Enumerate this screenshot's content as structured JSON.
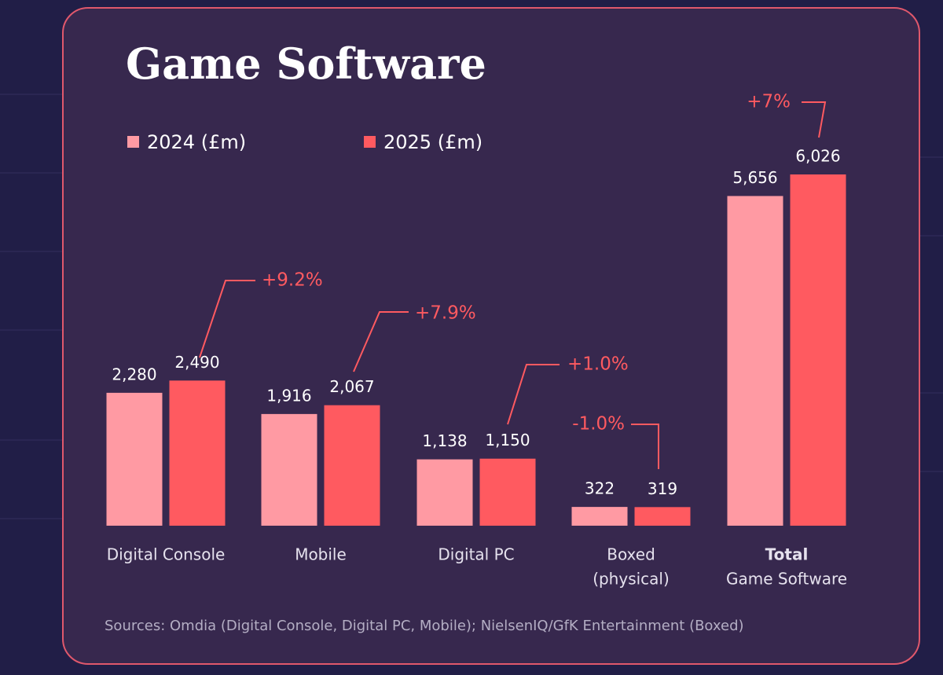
{
  "chart_data": {
    "type": "bar",
    "title": "Game Software",
    "categories": [
      [
        "Digital Console"
      ],
      [
        "Mobile"
      ],
      [
        "Digital PC"
      ],
      [
        "Boxed",
        "(physical)"
      ],
      [
        "Total",
        "Game Software"
      ]
    ],
    "series": [
      {
        "name": "2024 (£m)",
        "color": "#ff9aa3",
        "values": [
          2280,
          1916,
          1138,
          322,
          5656
        ],
        "value_labels": [
          "2,280",
          "1,916",
          "1,138",
          "322",
          "5,656"
        ]
      },
      {
        "name": "2025 (£m)",
        "color": "#ff5a60",
        "values": [
          2490,
          2067,
          1150,
          319,
          6026
        ],
        "value_labels": [
          "2,490",
          "2,067",
          "1,150",
          "319",
          "6,026"
        ]
      }
    ],
    "annotations": [
      "+9.2%",
      "+7.9%",
      "+1.0%",
      "-1.0%",
      "+7%"
    ],
    "source": "Sources: Omdia (Digital Console, Digital PC, Mobile); NielsenIQ/GfK Entertainment (Boxed)"
  }
}
